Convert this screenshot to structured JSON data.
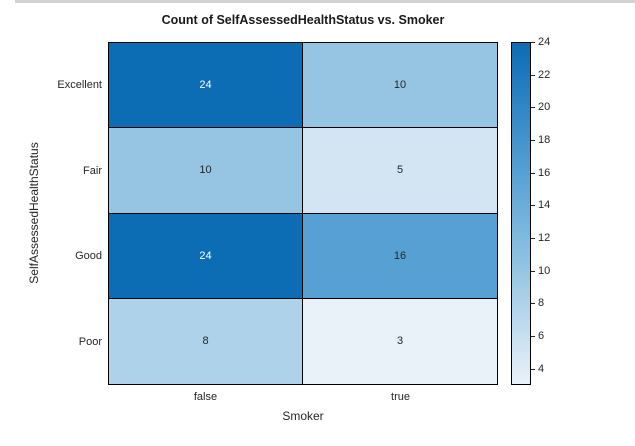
{
  "page": {
    "background": "#ffffff",
    "top_border_color": "#d2d2d2",
    "label_color": "#262626",
    "title_color": "#1a1a1a",
    "grid_color": "#000000"
  },
  "chart_data": {
    "type": "heatmap",
    "title": "Count of SelfAssessedHealthStatus vs. Smoker",
    "xlabel": "Smoker",
    "ylabel": "SelfAssessedHealthStatus",
    "x_categories": [
      "false",
      "true"
    ],
    "y_categories": [
      "Excellent",
      "Fair",
      "Good",
      "Poor"
    ],
    "values": [
      [
        24,
        10
      ],
      [
        10,
        5
      ],
      [
        24,
        16
      ],
      [
        8,
        3
      ]
    ],
    "cell_colors": [
      [
        "#0c6cb4",
        "#95c5e3"
      ],
      [
        "#95c5e3",
        "#d3e5f3"
      ],
      [
        "#0c6cb4",
        "#57a0d3"
      ],
      [
        "#aed2ea",
        "#e9f1f9"
      ]
    ],
    "cell_text_colors": [
      [
        "#ffffff",
        "#262626"
      ],
      [
        "#262626",
        "#262626"
      ],
      [
        "#ffffff",
        "#262626"
      ],
      [
        "#262626",
        "#262626"
      ]
    ],
    "colorbar": {
      "min": 3,
      "max": 24,
      "ticks": [
        4,
        6,
        8,
        10,
        12,
        14,
        16,
        18,
        20,
        22,
        24
      ],
      "gradient_stops": [
        {
          "value": 3,
          "color": "#e9f1f9"
        },
        {
          "value": 5,
          "color": "#d3e5f3"
        },
        {
          "value": 8,
          "color": "#aed2ea"
        },
        {
          "value": 10,
          "color": "#95c5e3"
        },
        {
          "value": 16,
          "color": "#57a0d3"
        },
        {
          "value": 24,
          "color": "#0c6cb4"
        }
      ],
      "legend_position": "right"
    },
    "grid": true
  }
}
